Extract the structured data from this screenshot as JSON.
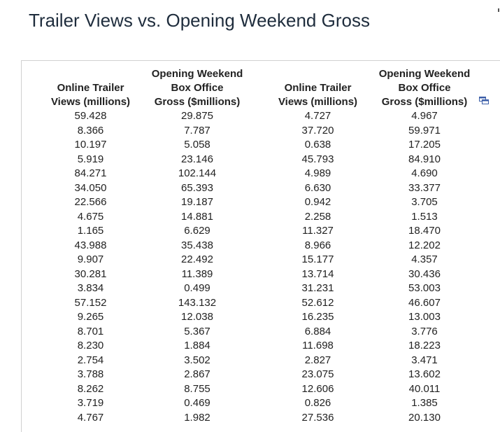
{
  "title": "Trailer Views vs. Opening Weekend Gross",
  "table": {
    "headers": [
      [
        "Online Trailer",
        "Views (millions)"
      ],
      [
        "Opening Weekend",
        "Box Office",
        "Gross ($millions)"
      ],
      [
        "Online Trailer",
        "Views (millions)"
      ],
      [
        "Opening Weekend",
        "Box Office",
        "Gross ($millions)"
      ]
    ],
    "columns": [
      [
        "59.428",
        "8.366",
        "10.197",
        "5.919",
        "84.271",
        "34.050",
        "22.566",
        "4.675",
        "1.165",
        "43.988",
        "9.907",
        "30.281",
        "3.834",
        "57.152",
        "9.265",
        "8.701",
        "8.230",
        "2.754",
        "3.788",
        "8.262",
        "3.719",
        "4.767"
      ],
      [
        "29.875",
        "7.787",
        "5.058",
        "23.146",
        "102.144",
        "65.393",
        "19.187",
        "14.881",
        "6.629",
        "35.438",
        "22.492",
        "11.389",
        "0.499",
        "143.132",
        "12.038",
        "5.367",
        "1.884",
        "3.502",
        "2.867",
        "8.755",
        "0.469",
        "1.982"
      ],
      [
        "4.727",
        "37.720",
        "0.638",
        "45.793",
        "4.989",
        "6.630",
        "0.942",
        "2.258",
        "11.327",
        "8.966",
        "15.177",
        "13.714",
        "31.231",
        "52.612",
        "16.235",
        "6.884",
        "11.698",
        "2.827",
        "23.075",
        "12.606",
        "0.826",
        "27.536"
      ],
      [
        "4.967",
        "59.971",
        "17.205",
        "84.910",
        "4.690",
        "33.377",
        "3.705",
        "1.513",
        "18.470",
        "12.202",
        "4.357",
        "30.436",
        "53.003",
        "46.607",
        "13.003",
        "3.776",
        "18.223",
        "3.471",
        "13.602",
        "40.011",
        "1.385",
        "20.130"
      ]
    ]
  },
  "icons": {
    "copy": "copy-icon"
  },
  "colors": {
    "title": "#1f2d3d",
    "icon": "#3b5ea8"
  }
}
